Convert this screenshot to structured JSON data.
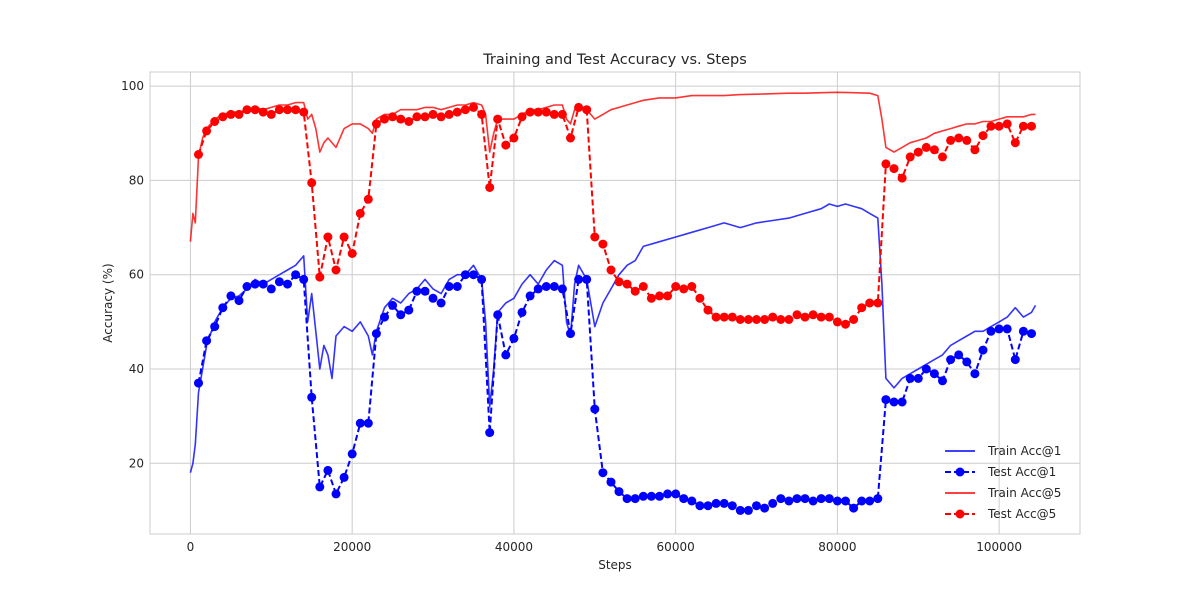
{
  "chart_data": {
    "type": "line",
    "title": "Training and Test Accuracy vs. Steps",
    "xlabel": "Steps",
    "ylabel": "Accuracy (%)",
    "xlim": [
      -5000,
      110000
    ],
    "ylim": [
      5,
      103
    ],
    "xticks": [
      0,
      20000,
      40000,
      60000,
      80000,
      100000
    ],
    "yticks": [
      20,
      40,
      60,
      80,
      100
    ],
    "grid": true,
    "legend_position": "lower-right",
    "series": [
      {
        "name": "Train Acc@1",
        "color": "#0000ff",
        "style": "solid",
        "x": [
          0,
          300,
          600,
          1000,
          1500,
          2000,
          3000,
          4000,
          5000,
          6000,
          7000,
          8000,
          9000,
          10000,
          11000,
          12000,
          13000,
          14000,
          14500,
          15000,
          15500,
          16000,
          16500,
          17000,
          17500,
          18000,
          19000,
          20000,
          21000,
          22000,
          22500,
          23000,
          24000,
          25000,
          26000,
          27000,
          28000,
          29000,
          30000,
          31000,
          32000,
          33000,
          34000,
          35000,
          36000,
          36500,
          37000,
          37500,
          38000,
          39000,
          40000,
          41000,
          42000,
          43000,
          44000,
          45000,
          46000,
          46500,
          47000,
          47500,
          48000,
          49000,
          50000,
          51000,
          52000,
          53000,
          54000,
          55000,
          56000,
          58000,
          60000,
          62000,
          64000,
          66000,
          68000,
          70000,
          72000,
          74000,
          76000,
          78000,
          79000,
          80000,
          81000,
          82000,
          83000,
          84000,
          85000,
          85500,
          86000,
          87000,
          88000,
          89000,
          90000,
          91000,
          92000,
          93000,
          94000,
          95000,
          96000,
          97000,
          98000,
          99000,
          100000,
          101000,
          102000,
          103000,
          104000,
          104500
        ],
        "y": [
          18,
          20,
          24,
          35,
          40,
          45,
          50,
          53,
          55,
          55.5,
          57,
          59,
          58,
          59,
          60,
          61,
          62,
          64,
          50,
          56,
          48,
          40,
          45,
          43,
          38,
          47,
          49,
          48,
          50,
          47,
          43,
          48,
          53,
          55,
          54,
          56,
          57,
          59,
          57,
          56,
          59,
          60,
          60,
          62,
          59,
          50,
          32,
          40,
          52,
          54,
          55,
          58,
          60,
          58,
          61,
          63,
          62,
          50,
          47,
          58,
          62,
          59,
          49,
          54,
          57,
          60,
          62,
          63,
          66,
          67,
          68,
          69,
          70,
          71,
          70,
          71,
          71.5,
          72,
          73,
          74,
          75,
          74.5,
          75,
          74.5,
          74,
          73,
          72,
          58,
          38,
          36,
          38,
          39,
          40,
          41,
          42,
          43,
          45,
          46,
          47,
          48,
          48,
          49,
          50,
          51,
          53,
          51,
          52,
          53.5
        ]
      },
      {
        "name": "Test Acc@1",
        "color": "#0000ff",
        "style": "dashed-marker",
        "x": [
          1000,
          2000,
          3000,
          4000,
          5000,
          6000,
          7000,
          8000,
          9000,
          10000,
          11000,
          12000,
          13000,
          14000,
          15000,
          16000,
          17000,
          18000,
          19000,
          20000,
          21000,
          22000,
          23000,
          24000,
          25000,
          26000,
          27000,
          28000,
          29000,
          30000,
          31000,
          32000,
          33000,
          34000,
          35000,
          36000,
          37000,
          38000,
          39000,
          40000,
          41000,
          42000,
          43000,
          44000,
          45000,
          46000,
          47000,
          48000,
          49000,
          50000,
          51000,
          52000,
          53000,
          54000,
          55000,
          56000,
          57000,
          58000,
          59000,
          60000,
          61000,
          62000,
          63000,
          64000,
          65000,
          66000,
          67000,
          68000,
          69000,
          70000,
          71000,
          72000,
          73000,
          74000,
          75000,
          76000,
          77000,
          78000,
          79000,
          80000,
          81000,
          82000,
          83000,
          84000,
          85000,
          86000,
          87000,
          88000,
          89000,
          90000,
          91000,
          92000,
          93000,
          94000,
          95000,
          96000,
          97000,
          98000,
          99000,
          100000,
          101000,
          102000,
          103000,
          104000
        ],
        "y": [
          37,
          46,
          49,
          53,
          55.5,
          54.5,
          57.5,
          58,
          58,
          57,
          58.5,
          58,
          60,
          59,
          34,
          15,
          18.5,
          13.5,
          17,
          22,
          28.5,
          28.5,
          47.5,
          51,
          53.5,
          51.5,
          52.5,
          56.5,
          56.5,
          55,
          54,
          57.5,
          57.5,
          60,
          60,
          59,
          26.5,
          51.5,
          43,
          46.5,
          52,
          55.5,
          57,
          57.5,
          57.5,
          57,
          47.5,
          59,
          59,
          31.5,
          18,
          16,
          14,
          12.5,
          12.5,
          13,
          13,
          13,
          13.5,
          13.5,
          12.5,
          12,
          11,
          11,
          11.5,
          11.5,
          11,
          10,
          10,
          11,
          10.5,
          11.5,
          12.5,
          12,
          12.5,
          12.5,
          12,
          12.5,
          12.5,
          12,
          12,
          10.5,
          12,
          12,
          12.5,
          33.5,
          33,
          33,
          38,
          38,
          40,
          39,
          37.5,
          42,
          43,
          41.5,
          39,
          44,
          48,
          48.5,
          48.5,
          42,
          48,
          47.5
        ]
      },
      {
        "name": "Train Acc@5",
        "color": "#ff0000",
        "style": "solid",
        "x": [
          0,
          300,
          600,
          1000,
          1500,
          2000,
          3000,
          4000,
          5000,
          6000,
          7000,
          8000,
          9000,
          10000,
          11000,
          12000,
          13000,
          14000,
          14500,
          15000,
          15500,
          16000,
          16500,
          17000,
          18000,
          19000,
          20000,
          21000,
          22000,
          22500,
          23000,
          24000,
          25000,
          26000,
          27000,
          28000,
          29000,
          30000,
          31000,
          32000,
          33000,
          34000,
          35000,
          36000,
          36500,
          37000,
          37500,
          38000,
          39000,
          40000,
          41000,
          42000,
          43000,
          44000,
          45000,
          46000,
          46500,
          47000,
          47500,
          48000,
          49000,
          50000,
          51000,
          52000,
          53000,
          54000,
          55000,
          56000,
          58000,
          60000,
          62000,
          64000,
          66000,
          68000,
          70000,
          72000,
          74000,
          76000,
          78000,
          80000,
          82000,
          84000,
          85000,
          85500,
          86000,
          87000,
          88000,
          89000,
          90000,
          91000,
          92000,
          93000,
          94000,
          95000,
          96000,
          97000,
          98000,
          99000,
          100000,
          101000,
          102000,
          103000,
          104000,
          104500
        ],
        "y": [
          67,
          73,
          71,
          85,
          89,
          91,
          93,
          94,
          94.5,
          94.5,
          95,
          95.5,
          95,
          95.5,
          96,
          96,
          96.5,
          96.5,
          93,
          94,
          91,
          86,
          88,
          89,
          87,
          91,
          92,
          92,
          91,
          90,
          93,
          94,
          94,
          95,
          95,
          95,
          95.5,
          95.5,
          95,
          95.5,
          96,
          96,
          96.5,
          96,
          94,
          86,
          90,
          93,
          93,
          93,
          94,
          95,
          95,
          95.5,
          96,
          96,
          93,
          92,
          95,
          96,
          95,
          93,
          94,
          95,
          95.5,
          96,
          96.5,
          97,
          97.5,
          97.5,
          98,
          98,
          98,
          98.2,
          98.3,
          98.4,
          98.5,
          98.5,
          98.6,
          98.7,
          98.6,
          98.5,
          98,
          93,
          87,
          86,
          87,
          88,
          88.5,
          89,
          90,
          90.5,
          91,
          91.5,
          92,
          92,
          92.5,
          92.5,
          93,
          93.5,
          93.5,
          93.5,
          94,
          94
        ]
      },
      {
        "name": "Test Acc@5",
        "color": "#ff0000",
        "style": "dashed-marker",
        "x": [
          1000,
          2000,
          3000,
          4000,
          5000,
          6000,
          7000,
          8000,
          9000,
          10000,
          11000,
          12000,
          13000,
          14000,
          15000,
          16000,
          17000,
          18000,
          19000,
          20000,
          21000,
          22000,
          23000,
          24000,
          25000,
          26000,
          27000,
          28000,
          29000,
          30000,
          31000,
          32000,
          33000,
          34000,
          35000,
          36000,
          37000,
          38000,
          39000,
          40000,
          41000,
          42000,
          43000,
          44000,
          45000,
          46000,
          47000,
          48000,
          49000,
          50000,
          51000,
          52000,
          53000,
          54000,
          55000,
          56000,
          57000,
          58000,
          59000,
          60000,
          61000,
          62000,
          63000,
          64000,
          65000,
          66000,
          67000,
          68000,
          69000,
          70000,
          71000,
          72000,
          73000,
          74000,
          75000,
          76000,
          77000,
          78000,
          79000,
          80000,
          81000,
          82000,
          83000,
          84000,
          85000,
          86000,
          87000,
          88000,
          89000,
          90000,
          91000,
          92000,
          93000,
          94000,
          95000,
          96000,
          97000,
          98000,
          99000,
          100000,
          101000,
          102000,
          103000,
          104000
        ],
        "y": [
          85.5,
          90.5,
          92.5,
          93.5,
          94,
          94,
          95,
          95,
          94.5,
          94,
          95,
          95,
          95,
          94.5,
          79.5,
          59.5,
          68,
          61,
          68,
          64.5,
          73,
          76,
          92,
          93,
          93.5,
          93,
          92.5,
          93.5,
          93.5,
          94,
          93.5,
          94,
          94.5,
          95,
          95.5,
          94,
          78.5,
          93,
          87.5,
          89,
          93.5,
          94.5,
          94.5,
          94.5,
          94,
          94,
          89,
          95.5,
          95,
          68,
          66.5,
          61,
          58.5,
          58,
          56.5,
          57.5,
          55,
          55.5,
          55.5,
          57.5,
          57,
          57.5,
          55,
          52.5,
          51,
          51,
          51,
          50.5,
          50.5,
          50.5,
          50.5,
          51,
          50.5,
          50.5,
          51.5,
          51,
          51.5,
          51,
          51,
          50,
          49.5,
          50.5,
          53,
          54,
          54,
          83.5,
          82.5,
          80.5,
          85,
          86,
          87,
          86.5,
          85,
          88.5,
          89,
          88.5,
          86.5,
          89.5,
          91.5,
          91.5,
          92,
          88,
          91.5,
          91.5
        ]
      }
    ]
  }
}
